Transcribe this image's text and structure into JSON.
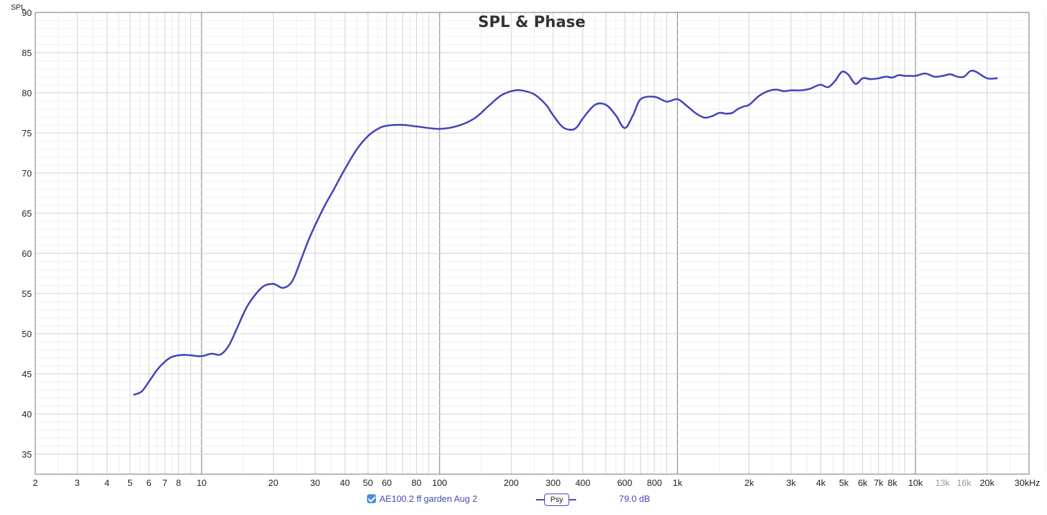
{
  "chart_data": {
    "type": "line",
    "title": "SPL & Phase",
    "ylabel": "SPL",
    "xlabel": "",
    "x_scale": "log",
    "xlim": [
      2,
      30000
    ],
    "ylim": [
      32.5,
      90
    ],
    "grid": true,
    "y_ticks": [
      35,
      40,
      45,
      50,
      55,
      60,
      65,
      70,
      75,
      80,
      85,
      90
    ],
    "x_tick_labels": [
      {
        "value": 2,
        "label": "2"
      },
      {
        "value": 3,
        "label": "3"
      },
      {
        "value": 4,
        "label": "4"
      },
      {
        "value": 5,
        "label": "5"
      },
      {
        "value": 6,
        "label": "6"
      },
      {
        "value": 7,
        "label": "7"
      },
      {
        "value": 8,
        "label": "8"
      },
      {
        "value": 10,
        "label": "10"
      },
      {
        "value": 20,
        "label": "20"
      },
      {
        "value": 30,
        "label": "30"
      },
      {
        "value": 40,
        "label": "40"
      },
      {
        "value": 50,
        "label": "50"
      },
      {
        "value": 60,
        "label": "60"
      },
      {
        "value": 80,
        "label": "80"
      },
      {
        "value": 100,
        "label": "100"
      },
      {
        "value": 200,
        "label": "200"
      },
      {
        "value": 300,
        "label": "300"
      },
      {
        "value": 400,
        "label": "400"
      },
      {
        "value": 600,
        "label": "600"
      },
      {
        "value": 800,
        "label": "800"
      },
      {
        "value": 1000,
        "label": "1k"
      },
      {
        "value": 2000,
        "label": "2k"
      },
      {
        "value": 3000,
        "label": "3k"
      },
      {
        "value": 4000,
        "label": "4k"
      },
      {
        "value": 5000,
        "label": "5k"
      },
      {
        "value": 6000,
        "label": "6k"
      },
      {
        "value": 7000,
        "label": "7k"
      },
      {
        "value": 8000,
        "label": "8k"
      },
      {
        "value": 10000,
        "label": "10k"
      },
      {
        "value": 13000,
        "label": "13k",
        "dim": true
      },
      {
        "value": 16000,
        "label": "16k",
        "dim": true
      },
      {
        "value": 20000,
        "label": "20k"
      },
      {
        "value": 30000,
        "label": "30kHz"
      }
    ],
    "series": [
      {
        "name": "AE100.2 ff garden Aug 2",
        "color": "#4444bb",
        "x": [
          5.2,
          5.6,
          6,
          6.5,
          7,
          7.5,
          8,
          8.5,
          9,
          10,
          11,
          12,
          13,
          14,
          15,
          16,
          18,
          20,
          22,
          24,
          26,
          28,
          30,
          33,
          36,
          40,
          45,
          50,
          55,
          60,
          70,
          80,
          100,
          120,
          140,
          160,
          180,
          200,
          220,
          250,
          280,
          300,
          330,
          360,
          380,
          400,
          450,
          500,
          550,
          600,
          650,
          700,
          800,
          900,
          1000,
          1100,
          1200,
          1300,
          1400,
          1500,
          1600,
          1700,
          1800,
          1900,
          2000,
          2200,
          2400,
          2600,
          2800,
          3000,
          3300,
          3600,
          3800,
          4000,
          4300,
          4600,
          4900,
          5200,
          5600,
          6000,
          6500,
          7000,
          7500,
          8000,
          8500,
          9000,
          9500,
          10000,
          11000,
          12000,
          13000,
          14000,
          15000,
          16000,
          17000,
          18000,
          20000,
          22000
        ],
        "y": [
          42.4,
          42.8,
          44.0,
          45.5,
          46.5,
          47.1,
          47.3,
          47.35,
          47.3,
          47.2,
          47.5,
          47.4,
          48.5,
          50.5,
          52.5,
          54.0,
          55.8,
          56.2,
          55.7,
          56.5,
          59.0,
          61.5,
          63.5,
          66.0,
          68.0,
          70.5,
          73.0,
          74.6,
          75.5,
          75.9,
          76.0,
          75.8,
          75.5,
          75.9,
          76.8,
          78.3,
          79.6,
          80.2,
          80.3,
          79.8,
          78.5,
          77.2,
          75.7,
          75.4,
          75.8,
          76.8,
          78.5,
          78.5,
          77.2,
          75.6,
          77.2,
          79.2,
          79.5,
          78.9,
          79.2,
          78.3,
          77.4,
          76.9,
          77.1,
          77.5,
          77.4,
          77.5,
          78.0,
          78.3,
          78.5,
          79.6,
          80.2,
          80.4,
          80.2,
          80.3,
          80.3,
          80.5,
          80.8,
          81.0,
          80.7,
          81.5,
          82.6,
          82.3,
          81.1,
          81.8,
          81.7,
          81.8,
          82.0,
          81.9,
          82.2,
          82.1,
          82.1,
          82.1,
          82.4,
          82.0,
          82.1,
          82.3,
          82.0,
          82.0,
          82.7,
          82.6,
          81.8,
          81.8
        ]
      }
    ]
  },
  "legend": {
    "series_name": "AE100.2 ff garden Aug 2",
    "smoothing_label": "Psy",
    "value_readout": "79.0 dB"
  }
}
